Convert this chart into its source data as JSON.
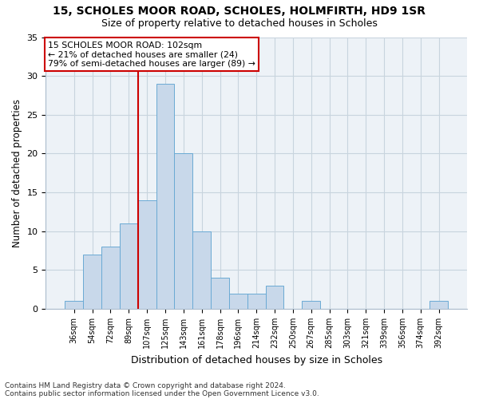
{
  "title1": "15, SCHOLES MOOR ROAD, SCHOLES, HOLMFIRTH, HD9 1SR",
  "title2": "Size of property relative to detached houses in Scholes",
  "xlabel": "Distribution of detached houses by size in Scholes",
  "ylabel": "Number of detached properties",
  "categories": [
    "36sqm",
    "54sqm",
    "72sqm",
    "89sqm",
    "107sqm",
    "125sqm",
    "143sqm",
    "161sqm",
    "178sqm",
    "196sqm",
    "214sqm",
    "232sqm",
    "250sqm",
    "267sqm",
    "285sqm",
    "303sqm",
    "321sqm",
    "339sqm",
    "356sqm",
    "374sqm",
    "392sqm"
  ],
  "values": [
    1,
    7,
    8,
    11,
    14,
    29,
    20,
    10,
    4,
    2,
    2,
    3,
    0,
    1,
    0,
    0,
    0,
    0,
    0,
    0,
    1
  ],
  "bar_color": "#c8d8ea",
  "bar_edge_color": "#6aaad4",
  "vline_x_index": 4,
  "vline_color": "#cc0000",
  "annotation_lines": [
    "15 SCHOLES MOOR ROAD: 102sqm",
    "← 21% of detached houses are smaller (24)",
    "79% of semi-detached houses are larger (89) →"
  ],
  "annotation_box_color": "#ffffff",
  "annotation_box_edge": "#cc0000",
  "ylim": [
    0,
    35
  ],
  "yticks": [
    0,
    5,
    10,
    15,
    20,
    25,
    30,
    35
  ],
  "footnote1": "Contains HM Land Registry data © Crown copyright and database right 2024.",
  "footnote2": "Contains public sector information licensed under the Open Government Licence v3.0.",
  "bg_color": "#edf2f7",
  "grid_color": "#c8d4de"
}
